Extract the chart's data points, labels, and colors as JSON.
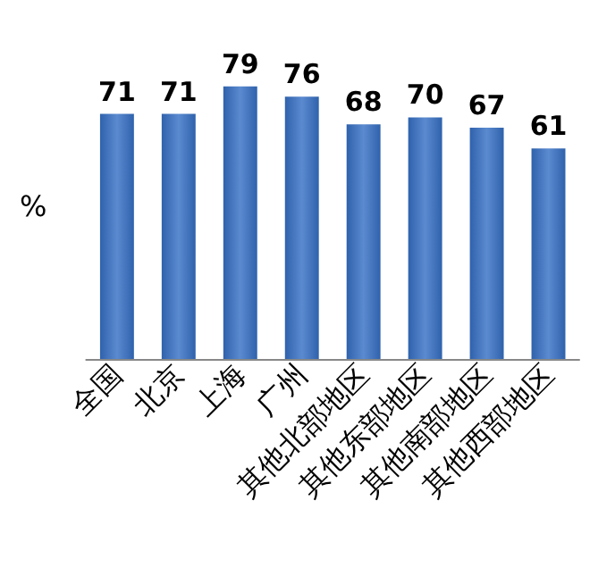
{
  "chart_data": {
    "type": "bar",
    "ylabel": "%",
    "categories": [
      "全国",
      "北京",
      "上海",
      "广州",
      "其他北部地区",
      "其他东部地区",
      "其他南部地区",
      "其他西部地区"
    ],
    "values": [
      71,
      71,
      79,
      76,
      68,
      70,
      67,
      61
    ],
    "color": "#2f62ac",
    "data_labels": true
  }
}
